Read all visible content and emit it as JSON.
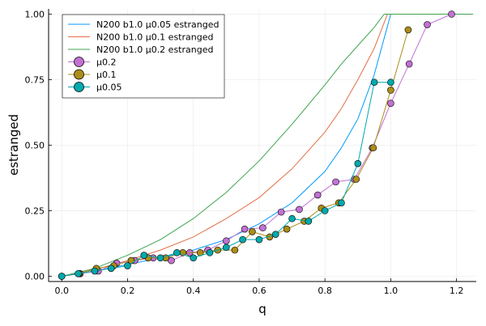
{
  "chart_data": {
    "type": "line",
    "title": "",
    "xlabel": "q",
    "ylabel": "estranged",
    "xlim": [
      -0.04,
      1.26
    ],
    "ylim": [
      -0.02,
      1.02
    ],
    "x_ticks": [
      0.0,
      0.2,
      0.4,
      0.6,
      0.8,
      1.0,
      1.2
    ],
    "x_tick_labels": [
      "0.0",
      "0.2",
      "0.4",
      "0.6",
      "0.8",
      "1.0",
      "1.2"
    ],
    "y_ticks": [
      0.0,
      0.25,
      0.5,
      0.75,
      1.0
    ],
    "y_tick_labels": [
      "0.00",
      "0.25",
      "0.50",
      "0.75",
      "1.00"
    ],
    "grid": true,
    "legend_position": "top-left",
    "series": [
      {
        "name": "N200 b1.0 μ0.05 estranged",
        "style": "line",
        "color": "#009AFA",
        "x": [
          0,
          0.1,
          0.2,
          0.3,
          0.4,
          0.5,
          0.6,
          0.7,
          0.8,
          0.85,
          0.9,
          0.95,
          1.0,
          1.25
        ],
        "y": [
          0,
          0.02,
          0.045,
          0.07,
          0.1,
          0.14,
          0.2,
          0.28,
          0.4,
          0.49,
          0.6,
          0.77,
          1.0,
          1.0
        ]
      },
      {
        "name": "N200 b1.0 μ0.1 estranged",
        "style": "line",
        "color": "#E36F47",
        "x": [
          0,
          0.1,
          0.2,
          0.3,
          0.4,
          0.5,
          0.6,
          0.7,
          0.8,
          0.85,
          0.9,
          0.95,
          0.99,
          1.25
        ],
        "y": [
          0,
          0.025,
          0.06,
          0.1,
          0.15,
          0.22,
          0.3,
          0.41,
          0.55,
          0.64,
          0.75,
          0.87,
          1.0,
          1.0
        ]
      },
      {
        "name": "N200 b1.0 μ0.2 estranged",
        "style": "line",
        "color": "#3EA44E",
        "x": [
          0,
          0.1,
          0.2,
          0.3,
          0.4,
          0.5,
          0.6,
          0.7,
          0.8,
          0.85,
          0.9,
          0.95,
          0.98,
          1.25
        ],
        "y": [
          0,
          0.03,
          0.08,
          0.14,
          0.22,
          0.32,
          0.44,
          0.58,
          0.73,
          0.81,
          0.88,
          0.95,
          1.0,
          1.0
        ]
      },
      {
        "name": "μ0.2",
        "style": "line-marker",
        "color": "#C271D2",
        "x": [
          0,
          0.056,
          0.111,
          0.167,
          0.222,
          0.278,
          0.333,
          0.389,
          0.444,
          0.5,
          0.556,
          0.611,
          0.667,
          0.722,
          0.778,
          0.833,
          0.889,
          0.944,
          1.0,
          1.056,
          1.111,
          1.185
        ],
        "y": [
          0,
          0.01,
          0.02,
          0.05,
          0.06,
          0.07,
          0.06,
          0.09,
          0.1,
          0.135,
          0.18,
          0.185,
          0.245,
          0.255,
          0.31,
          0.36,
          0.37,
          0.49,
          0.66,
          0.81,
          0.96,
          1.0
        ]
      },
      {
        "name": "μ0.1",
        "style": "line-marker",
        "color": "#AC8D18",
        "x": [
          0,
          0.053,
          0.105,
          0.158,
          0.211,
          0.263,
          0.316,
          0.368,
          0.421,
          0.474,
          0.526,
          0.579,
          0.632,
          0.684,
          0.737,
          0.789,
          0.842,
          0.895,
          0.947,
          1.0,
          1.053
        ],
        "y": [
          0,
          0.01,
          0.03,
          0.04,
          0.06,
          0.07,
          0.07,
          0.09,
          0.09,
          0.1,
          0.1,
          0.17,
          0.15,
          0.18,
          0.21,
          0.26,
          0.28,
          0.37,
          0.49,
          0.71,
          0.94
        ]
      },
      {
        "name": "μ0.05",
        "style": "line-marker",
        "color": "#00A9AD",
        "x": [
          0,
          0.05,
          0.1,
          0.15,
          0.2,
          0.25,
          0.3,
          0.35,
          0.4,
          0.45,
          0.5,
          0.55,
          0.6,
          0.65,
          0.7,
          0.75,
          0.8,
          0.85,
          0.9,
          0.95,
          1.0
        ],
        "y": [
          0,
          0.01,
          0.02,
          0.03,
          0.04,
          0.08,
          0.07,
          0.09,
          0.07,
          0.09,
          0.11,
          0.14,
          0.14,
          0.16,
          0.22,
          0.21,
          0.25,
          0.28,
          0.43,
          0.74,
          0.74
        ]
      }
    ]
  }
}
